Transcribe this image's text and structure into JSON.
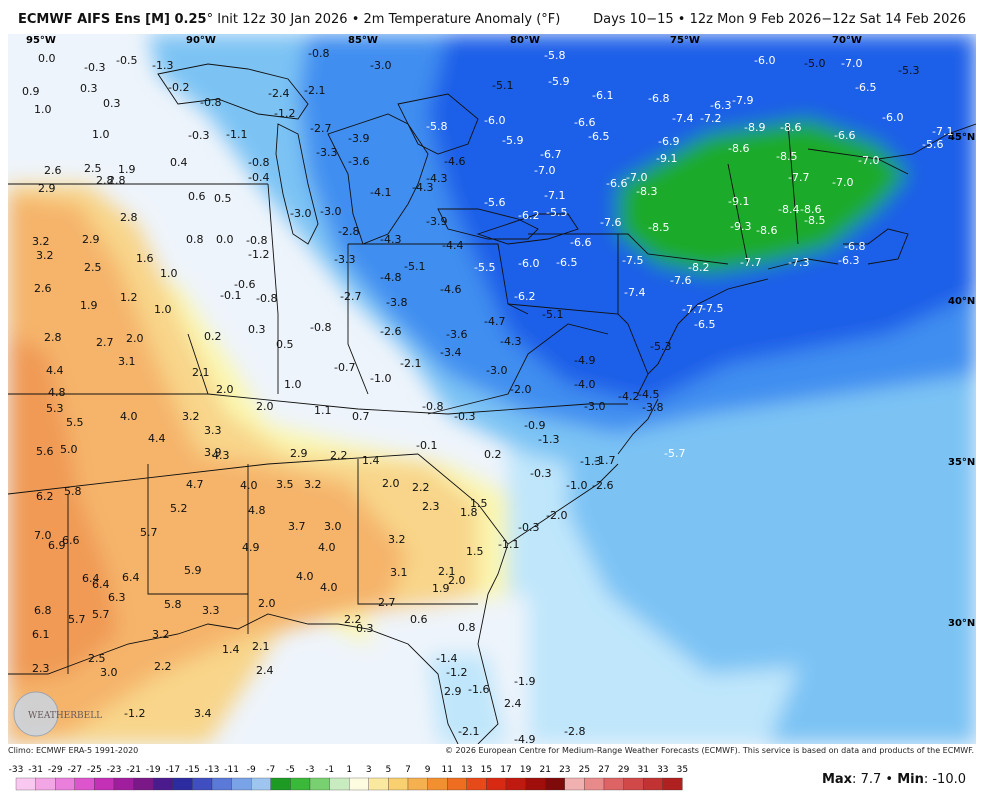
{
  "header": {
    "model": "ECMWF AIFS Ens [M] 0.25",
    "degree": "°",
    "init": "Init 12z 30 Jan 2026",
    "variable": "2m Temperature Anomaly (°F)",
    "valid": "Days 10−15 • 12z Mon 9 Feb 2026−12z Sat 14 Feb 2026",
    "bullet": "•"
  },
  "footer": {
    "climo": "Climo: ECMWF ERA-5 1991-2020",
    "copyright": "© 2026 European Centre for Medium-Range Weather Forecasts (ECMWF). This service is based on data and products of the ECMWF."
  },
  "stats": {
    "max_label": "Max",
    "max_value": "7.7",
    "min_label": "Min",
    "min_value": "-10.0"
  },
  "logo": {
    "text": "WEATHERBELL"
  },
  "map": {
    "lon_labels": [
      "95°W",
      "90°W",
      "85°W",
      "80°W",
      "75°W",
      "70°W"
    ],
    "lat_labels": [
      "45°N",
      "40°N",
      "35°N",
      "30°N"
    ],
    "anomaly_colors": {
      "cold_green": "#1faa2a",
      "dark_blue": "#1a5ee8",
      "mid_blue": "#3f8ef0",
      "light_blue": "#7cc3f4",
      "pale_blue": "#bfe6fb",
      "near_zero": "#eef4fb",
      "pale_yellow": "#fbf7b0",
      "light_orange": "#f8d58a",
      "orange": "#f5b46a",
      "deep_orange": "#f09a55"
    },
    "values": [
      {
        "v": "0.0"
      },
      {
        "v": "-0.3"
      },
      {
        "v": "-0.5"
      },
      {
        "v": "-1.3"
      },
      {
        "v": "-0.8"
      },
      {
        "v": "-3.0"
      },
      {
        "v": "-5.8"
      },
      {
        "v": "-6.0"
      },
      {
        "v": "-5.0"
      },
      {
        "v": "-7.0"
      },
      {
        "v": "-5.3"
      },
      {
        "v": "0.9"
      },
      {
        "v": "0.3"
      },
      {
        "v": "-0.2"
      },
      {
        "v": "-2.4"
      },
      {
        "v": "-2.1"
      },
      {
        "v": "-5.1"
      },
      {
        "v": "-5.9"
      },
      {
        "v": "-6.1"
      },
      {
        "v": "-6.8"
      },
      {
        "v": "-7.9"
      },
      {
        "v": "-6.5"
      },
      {
        "v": "-6.3"
      },
      {
        "v": "1.0"
      },
      {
        "v": "0.3"
      },
      {
        "v": "-0.8"
      },
      {
        "v": "-1.2"
      },
      {
        "v": "-2.7"
      },
      {
        "v": "-5.8"
      },
      {
        "v": "-6.0"
      },
      {
        "v": "-6.6"
      },
      {
        "v": "-7.4"
      },
      {
        "v": "-7.2"
      },
      {
        "v": "-8.9"
      },
      {
        "v": "-8.6"
      },
      {
        "v": "-6.6"
      },
      {
        "v": "-6.0"
      },
      {
        "v": "-7.1"
      },
      {
        "v": "1.0"
      },
      {
        "v": "-0.3"
      },
      {
        "v": "-1.1"
      },
      {
        "v": "-3.9"
      },
      {
        "v": "-5.9"
      },
      {
        "v": "-6.5"
      },
      {
        "v": "-6.9"
      },
      {
        "v": "-5.6"
      },
      {
        "v": "2.6"
      },
      {
        "v": "2.5"
      },
      {
        "v": "1.9"
      },
      {
        "v": "0.4"
      },
      {
        "v": "-0.8"
      },
      {
        "v": "-3.3"
      },
      {
        "v": "-3.6"
      },
      {
        "v": "-4.6"
      },
      {
        "v": "-6.7"
      },
      {
        "v": "-9.1"
      },
      {
        "v": "-8.6"
      },
      {
        "v": "-8.5"
      },
      {
        "v": "-7.0"
      },
      {
        "v": "2.8"
      },
      {
        "v": "2.8"
      },
      {
        "v": "-0.4"
      },
      {
        "v": "-4.3"
      },
      {
        "v": "-7.0"
      },
      {
        "v": "-6.6"
      },
      {
        "v": "-7.0"
      },
      {
        "v": "-7.7"
      },
      {
        "v": "-7.0"
      },
      {
        "v": "2.9"
      },
      {
        "v": "0.6"
      },
      {
        "v": "0.5"
      },
      {
        "v": "-4.1"
      },
      {
        "v": "-4.3"
      },
      {
        "v": "-7.1"
      },
      {
        "v": "-8.3"
      },
      {
        "v": "-9.1"
      },
      {
        "v": "2.8"
      },
      {
        "v": "-3.0"
      },
      {
        "v": "-3.0"
      },
      {
        "v": "-3.9"
      },
      {
        "v": "-5.6"
      },
      {
        "v": "-6.2"
      },
      {
        "v": "-5.5"
      },
      {
        "v": "-7.6"
      },
      {
        "v": "-8.4"
      },
      {
        "v": "-8.6"
      },
      {
        "v": "-8.5"
      },
      {
        "v": "2.9"
      },
      {
        "v": "0.8"
      },
      {
        "v": "0.0"
      },
      {
        "v": "-0.8"
      },
      {
        "v": "-2.8"
      },
      {
        "v": "-4.3"
      },
      {
        "v": "-4.4"
      },
      {
        "v": "-8.5"
      },
      {
        "v": "-9.3"
      },
      {
        "v": "-8.6"
      },
      {
        "v": "3.2"
      },
      {
        "v": "-1.2"
      },
      {
        "v": "-6.6"
      },
      {
        "v": "-6.8"
      },
      {
        "v": "3.2"
      },
      {
        "v": "1.6"
      },
      {
        "v": "-3.3"
      },
      {
        "v": "-5.1"
      },
      {
        "v": "-5.5"
      },
      {
        "v": "-6.0"
      },
      {
        "v": "-6.5"
      },
      {
        "v": "-7.5"
      },
      {
        "v": "-8.2"
      },
      {
        "v": "-7.7"
      },
      {
        "v": "-7.3"
      },
      {
        "v": "-6.3"
      },
      {
        "v": "2.5"
      },
      {
        "v": "1.0"
      },
      {
        "v": "-4.8"
      },
      {
        "v": "2.6"
      },
      {
        "v": "-0.6"
      },
      {
        "v": "-4.6"
      },
      {
        "v": "-7.6"
      },
      {
        "v": "1.2"
      },
      {
        "v": "-0.1"
      },
      {
        "v": "-0.8"
      },
      {
        "v": "-2.7"
      },
      {
        "v": "-3.8"
      },
      {
        "v": "-6.2"
      },
      {
        "v": "-7.4"
      },
      {
        "v": "1.9"
      },
      {
        "v": "1.0"
      },
      {
        "v": "-7.7"
      },
      {
        "v": "-7.5"
      },
      {
        "v": "-0.8"
      },
      {
        "v": "-2.6"
      },
      {
        "v": "-4.7"
      },
      {
        "v": "-5.1"
      },
      {
        "v": "-6.5"
      },
      {
        "v": "0.3"
      },
      {
        "v": "-3.6"
      },
      {
        "v": "2.8"
      },
      {
        "v": "2.7"
      },
      {
        "v": "2.0"
      },
      {
        "v": "0.2"
      },
      {
        "v": "0.5"
      },
      {
        "v": "-4.3"
      },
      {
        "v": "-5.3"
      },
      {
        "v": "-3.4"
      },
      {
        "v": "3.1"
      },
      {
        "v": "-2.1"
      },
      {
        "v": "-4.9"
      },
      {
        "v": "4.4"
      },
      {
        "v": "2.1"
      },
      {
        "v": "1.0"
      },
      {
        "v": "-0.7"
      },
      {
        "v": "-1.0"
      },
      {
        "v": "-3.0"
      },
      {
        "v": "2.0"
      },
      {
        "v": "-2.0"
      },
      {
        "v": "-4.0"
      },
      {
        "v": "4.8"
      },
      {
        "v": "-4.2"
      },
      {
        "v": "-4.5"
      },
      {
        "v": "5.3"
      },
      {
        "v": "2.0"
      },
      {
        "v": "1.1"
      },
      {
        "v": "-0.8"
      },
      {
        "v": "-3.0"
      },
      {
        "v": "-3.8"
      },
      {
        "v": "5.5"
      },
      {
        "v": "4.0"
      },
      {
        "v": "3.2"
      },
      {
        "v": "0.7"
      },
      {
        "v": "-0.3"
      },
      {
        "v": "3.3"
      },
      {
        "v": "-0.9"
      },
      {
        "v": "4.4"
      },
      {
        "v": "-1.3"
      },
      {
        "v": "5.6"
      },
      {
        "v": "5.0"
      },
      {
        "v": "3.9"
      },
      {
        "v": "4.3"
      },
      {
        "v": "2.9"
      },
      {
        "v": "2.2"
      },
      {
        "v": "1.4"
      },
      {
        "v": "-0.1"
      },
      {
        "v": "0.2"
      },
      {
        "v": "-5.7"
      },
      {
        "v": "-1.3"
      },
      {
        "v": "-1.7"
      },
      {
        "v": "4.7"
      },
      {
        "v": "4.0"
      },
      {
        "v": "3.5"
      },
      {
        "v": "3.2"
      },
      {
        "v": "2.0"
      },
      {
        "v": "2.2"
      },
      {
        "v": "-0.3"
      },
      {
        "v": "-1.0"
      },
      {
        "v": "-2.6"
      },
      {
        "v": "6.2"
      },
      {
        "v": "5.8"
      },
      {
        "v": "4.8"
      },
      {
        "v": "2.3"
      },
      {
        "v": "1.5"
      },
      {
        "v": "5.2"
      },
      {
        "v": "1.8"
      },
      {
        "v": "-2.0"
      },
      {
        "v": "3.7"
      },
      {
        "v": "3.0"
      },
      {
        "v": "-0.3"
      },
      {
        "v": "7.0"
      },
      {
        "v": "6.6"
      },
      {
        "v": "5.7"
      },
      {
        "v": "3.2"
      },
      {
        "v": "6.9"
      },
      {
        "v": "4.9"
      },
      {
        "v": "4.0"
      },
      {
        "v": "1.5"
      },
      {
        "v": "-1.1"
      },
      {
        "v": "5.9"
      },
      {
        "v": "3.1"
      },
      {
        "v": "2.1"
      },
      {
        "v": "6.4"
      },
      {
        "v": "6.4"
      },
      {
        "v": "4.0"
      },
      {
        "v": "2.0"
      },
      {
        "v": "6.4"
      },
      {
        "v": "4.0"
      },
      {
        "v": "1.9"
      },
      {
        "v": "6.3"
      },
      {
        "v": "6.8"
      },
      {
        "v": "5.7"
      },
      {
        "v": "5.7"
      },
      {
        "v": "2.0"
      },
      {
        "v": "2.7"
      },
      {
        "v": "5.8"
      },
      {
        "v": "3.3"
      },
      {
        "v": "2.2"
      },
      {
        "v": "0.6"
      },
      {
        "v": "6.1"
      },
      {
        "v": "3.2"
      },
      {
        "v": "0.3"
      },
      {
        "v": "0.8"
      },
      {
        "v": "1.4"
      },
      {
        "v": "2.1"
      },
      {
        "v": "2.5"
      },
      {
        "v": "-1.4"
      },
      {
        "v": "2.3"
      },
      {
        "v": "3.0"
      },
      {
        "v": "2.2"
      },
      {
        "v": "2.4"
      },
      {
        "v": "-1.2"
      },
      {
        "v": "-1.9"
      },
      {
        "v": "2.9"
      },
      {
        "v": "-1.6"
      },
      {
        "v": "-1.2"
      },
      {
        "v": "3.4"
      },
      {
        "v": "2.4"
      },
      {
        "v": "-2.1"
      },
      {
        "v": "-2.8"
      },
      {
        "v": "-4.9"
      },
      {
        "v": "-2.4"
      }
    ]
  },
  "scale": {
    "ticks": [
      "-33",
      "-31",
      "-29",
      "-27",
      "-25",
      "-23",
      "-21",
      "-19",
      "-17",
      "-15",
      "-13",
      "-11",
      "-9",
      "-7",
      "-5",
      "-3",
      "-1",
      "1",
      "3",
      "5",
      "7",
      "9",
      "11",
      "13",
      "15",
      "17",
      "19",
      "21",
      "23",
      "25",
      "27",
      "29",
      "31",
      "33",
      "35"
    ],
    "colors": [
      "#f8c8f0",
      "#f2a6e6",
      "#ea7fdb",
      "#dd55cd",
      "#c431b7",
      "#a01e9d",
      "#7a1888",
      "#4b1a8c",
      "#2c2ca0",
      "#3f4fc0",
      "#5a79d8",
      "#7aa2e6",
      "#9ec4f0",
      "#1d9a24",
      "#39b83a",
      "#78d070",
      "#c8ecc0",
      "#fdfbe0",
      "#fbe8a0",
      "#f8d070",
      "#f5b050",
      "#f29030",
      "#ee6d20",
      "#e64a18",
      "#d82a12",
      "#c01a10",
      "#a00e0c",
      "#7e0a0a",
      "#f0b0b0",
      "#e88a8a",
      "#dc6464",
      "#d04848",
      "#c23232",
      "#b02020"
    ]
  }
}
